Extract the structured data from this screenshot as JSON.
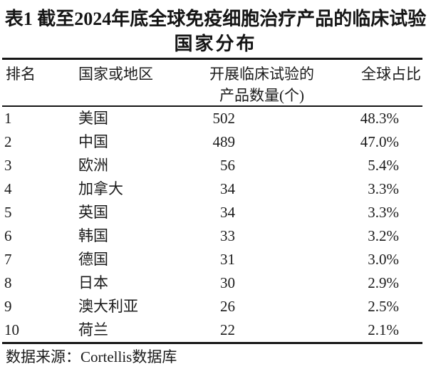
{
  "table": {
    "title_line1": "表1  截至2024年底全球免疫细胞治疗产品的临床试验",
    "title_line2": "国家分布",
    "columns": [
      "排名",
      "国家或地区",
      "开展临床试验的\n产品数量(个)",
      "全球占比"
    ],
    "rows": [
      {
        "rank": "1",
        "country": "美国",
        "count": "502",
        "share": "48.3%"
      },
      {
        "rank": "2",
        "country": "中国",
        "count": "489",
        "share": "47.0%"
      },
      {
        "rank": "3",
        "country": "欧洲",
        "count": "56",
        "share": "5.4%"
      },
      {
        "rank": "4",
        "country": "加拿大",
        "count": "34",
        "share": "3.3%"
      },
      {
        "rank": "5",
        "country": "英国",
        "count": "34",
        "share": "3.3%"
      },
      {
        "rank": "6",
        "country": "韩国",
        "count": "33",
        "share": "3.2%"
      },
      {
        "rank": "7",
        "country": "德国",
        "count": "31",
        "share": "3.0%"
      },
      {
        "rank": "8",
        "country": "日本",
        "count": "30",
        "share": "2.9%"
      },
      {
        "rank": "9",
        "country": "澳大利亚",
        "count": "26",
        "share": "2.5%"
      },
      {
        "rank": "10",
        "country": "荷兰",
        "count": "22",
        "share": "2.1%"
      }
    ],
    "source_note": "数据来源：Cortellis数据库",
    "colors": {
      "text": "#1b1b1b",
      "rule": "#161616",
      "background": "#ffffff"
    }
  }
}
